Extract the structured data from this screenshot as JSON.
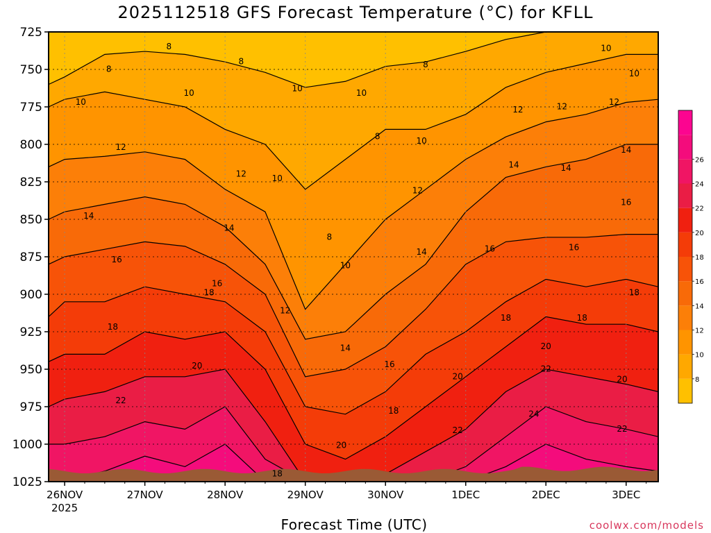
{
  "chart_data": {
    "type": "heatmap",
    "title": "2025112518 GFS Forecast Temperature (°C) for KFLL",
    "xlabel": "Forecast Time (UTC)",
    "ylabel": "",
    "y_axis": {
      "unit": "hPa",
      "inverted": true,
      "range": [
        725,
        1025
      ],
      "ticks": [
        725,
        750,
        775,
        800,
        825,
        850,
        875,
        900,
        925,
        950,
        975,
        1000,
        1025
      ]
    },
    "x_axis": {
      "range_days": [
        -0.2,
        7.4
      ],
      "ticks": [
        {
          "day": 0,
          "label": "26NOV",
          "sublabel": "2025"
        },
        {
          "day": 1,
          "label": "27NOV"
        },
        {
          "day": 2,
          "label": "28NOV"
        },
        {
          "day": 3,
          "label": "29NOV"
        },
        {
          "day": 4,
          "label": "30NOV"
        },
        {
          "day": 5,
          "label": "1DEC"
        },
        {
          "day": 6,
          "label": "2DEC"
        },
        {
          "day": 7,
          "label": "3DEC"
        }
      ]
    },
    "grid": true,
    "colorbar": {
      "placement": "right",
      "levels": [
        6,
        8,
        10,
        12,
        14,
        16,
        18,
        20,
        22,
        24,
        26,
        28
      ],
      "labels": [
        8,
        10,
        12,
        14,
        16,
        18,
        20,
        22,
        24,
        26
      ],
      "colors": [
        "#ffc000",
        "#ffa800",
        "#ff9400",
        "#fc7f08",
        "#f86a08",
        "#f75308",
        "#f43c08",
        "#f02010",
        "#ea1d45",
        "#f01564",
        "#f40c7c",
        "#fc0590"
      ]
    },
    "surface_color": "#9a5a35",
    "profile_days": [
      -0.2,
      0,
      0.5,
      1,
      1.5,
      2,
      2.5,
      3,
      3.5,
      4,
      4.5,
      5,
      5.5,
      6,
      6.5,
      7,
      7.4
    ],
    "isotherms_hPa": [
      {
        "t": 8,
        "p": [
          760,
          755,
          740,
          738,
          740,
          745,
          752,
          762,
          758,
          748,
          745,
          738,
          730,
          725,
          725,
          725,
          725
        ]
      },
      {
        "t": 10,
        "p": [
          775,
          770,
          765,
          770,
          775,
          790,
          800,
          830,
          810,
          790,
          790,
          780,
          762,
          752,
          746,
          740,
          740
        ]
      },
      {
        "t": 12,
        "p": [
          815,
          810,
          808,
          805,
          810,
          830,
          845,
          910,
          880,
          850,
          830,
          810,
          795,
          785,
          780,
          772,
          770
        ]
      },
      {
        "t": 14,
        "p": [
          850,
          845,
          840,
          835,
          840,
          855,
          880,
          930,
          925,
          900,
          880,
          845,
          822,
          815,
          810,
          800,
          800
        ]
      },
      {
        "t": 16,
        "p": [
          880,
          875,
          870,
          865,
          868,
          880,
          900,
          955,
          950,
          935,
          910,
          880,
          865,
          862,
          862,
          860,
          860
        ]
      },
      {
        "t": 18,
        "p": [
          915,
          905,
          905,
          895,
          900,
          905,
          925,
          975,
          980,
          965,
          940,
          925,
          905,
          890,
          895,
          890,
          895
        ]
      },
      {
        "t": 20,
        "p": [
          945,
          940,
          940,
          925,
          930,
          925,
          950,
          1000,
          1010,
          995,
          975,
          955,
          935,
          915,
          920,
          920,
          925
        ]
      },
      {
        "t": 22,
        "p": [
          975,
          970,
          965,
          955,
          955,
          950,
          985,
          1025,
          1025,
          1020,
          1005,
          990,
          965,
          950,
          955,
          960,
          965
        ]
      },
      {
        "t": 24,
        "p": [
          1000,
          1000,
          995,
          985,
          990,
          975,
          1010,
          1025,
          1025,
          1025,
          1025,
          1015,
          995,
          975,
          985,
          990,
          995
        ]
      },
      {
        "t": 26,
        "p": [
          1025,
          1025,
          1018,
          1008,
          1015,
          1000,
          1025,
          1025,
          1025,
          1025,
          1025,
          1025,
          1015,
          1000,
          1010,
          1015,
          1018
        ]
      }
    ],
    "contour_labels": [
      {
        "text": "8",
        "day": 0.55,
        "p": 750
      },
      {
        "text": "8",
        "day": 1.3,
        "p": 735
      },
      {
        "text": "8",
        "day": 2.2,
        "p": 745
      },
      {
        "text": "8",
        "day": 3.3,
        "p": 862
      },
      {
        "text": "8",
        "day": 3.9,
        "p": 795
      },
      {
        "text": "8",
        "day": 4.5,
        "p": 747
      },
      {
        "text": "10",
        "day": 0.2,
        "p": 772
      },
      {
        "text": "10",
        "day": 1.55,
        "p": 766
      },
      {
        "text": "10",
        "day": 2.9,
        "p": 763
      },
      {
        "text": "10",
        "day": 3.7,
        "p": 766
      },
      {
        "text": "10",
        "day": 2.65,
        "p": 823
      },
      {
        "text": "10",
        "day": 3.5,
        "p": 881
      },
      {
        "text": "10",
        "day": 4.45,
        "p": 798
      },
      {
        "text": "10",
        "day": 6.75,
        "p": 736
      },
      {
        "text": "10",
        "day": 7.1,
        "p": 753
      },
      {
        "text": "12",
        "day": 0.7,
        "p": 802
      },
      {
        "text": "12",
        "day": 2.2,
        "p": 820
      },
      {
        "text": "12",
        "day": 2.75,
        "p": 911
      },
      {
        "text": "12",
        "day": 4.4,
        "p": 831
      },
      {
        "text": "12",
        "day": 5.65,
        "p": 777
      },
      {
        "text": "12",
        "day": 6.2,
        "p": 775
      },
      {
        "text": "12",
        "day": 6.85,
        "p": 772
      },
      {
        "text": "14",
        "day": 0.3,
        "p": 848
      },
      {
        "text": "14",
        "day": 2.05,
        "p": 856
      },
      {
        "text": "14",
        "day": 3.5,
        "p": 936
      },
      {
        "text": "14",
        "day": 4.45,
        "p": 872
      },
      {
        "text": "14",
        "day": 5.6,
        "p": 814
      },
      {
        "text": "14",
        "day": 6.25,
        "p": 816
      },
      {
        "text": "14",
        "day": 7.0,
        "p": 804
      },
      {
        "text": "16",
        "day": 0.65,
        "p": 877
      },
      {
        "text": "16",
        "day": 1.9,
        "p": 893
      },
      {
        "text": "16",
        "day": 4.05,
        "p": 947
      },
      {
        "text": "16",
        "day": 5.3,
        "p": 870
      },
      {
        "text": "16",
        "day": 6.35,
        "p": 869
      },
      {
        "text": "16",
        "day": 7.0,
        "p": 839
      },
      {
        "text": "18",
        "day": 0.6,
        "p": 922
      },
      {
        "text": "18",
        "day": 1.8,
        "p": 899
      },
      {
        "text": "18",
        "day": 4.1,
        "p": 978
      },
      {
        "text": "18",
        "day": 5.5,
        "p": 916
      },
      {
        "text": "18",
        "day": 6.45,
        "p": 916
      },
      {
        "text": "18",
        "day": 7.1,
        "p": 899
      },
      {
        "text": "18",
        "day": 2.65,
        "p": 1020
      },
      {
        "text": "20",
        "day": 1.65,
        "p": 948
      },
      {
        "text": "20",
        "day": 3.45,
        "p": 1001
      },
      {
        "text": "20",
        "day": 4.9,
        "p": 955
      },
      {
        "text": "20",
        "day": 6.0,
        "p": 935
      },
      {
        "text": "20",
        "day": 6.95,
        "p": 957
      },
      {
        "text": "22",
        "day": 0.7,
        "p": 971
      },
      {
        "text": "22",
        "day": 4.9,
        "p": 991
      },
      {
        "text": "22",
        "day": 6.0,
        "p": 950
      },
      {
        "text": "22",
        "day": 6.95,
        "p": 990
      },
      {
        "text": "24",
        "day": 5.85,
        "p": 980
      }
    ]
  },
  "footer": {
    "credit": "coolwx.com/models"
  }
}
